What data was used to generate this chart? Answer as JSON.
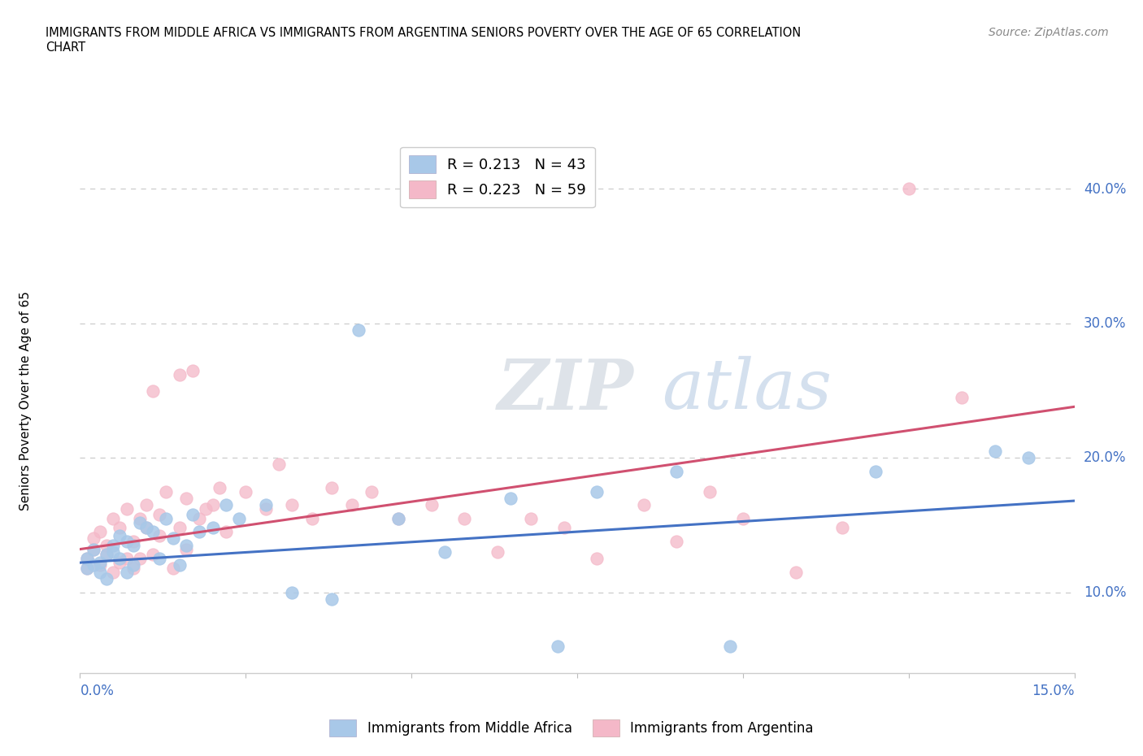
{
  "title_line1": "IMMIGRANTS FROM MIDDLE AFRICA VS IMMIGRANTS FROM ARGENTINA SENIORS POVERTY OVER THE AGE OF 65 CORRELATION",
  "title_line2": "CHART",
  "source": "Source: ZipAtlas.com",
  "ylabel": "Seniors Poverty Over the Age of 65",
  "yticks": [
    0.1,
    0.2,
    0.3,
    0.4
  ],
  "ytick_labels": [
    "10.0%",
    "20.0%",
    "30.0%",
    "40.0%"
  ],
  "xlim": [
    0.0,
    0.15
  ],
  "ylim": [
    0.04,
    0.445
  ],
  "color_blue": "#a8c8e8",
  "color_pink": "#f4b8c8",
  "color_line_blue": "#4472c4",
  "color_line_pink": "#d05070",
  "watermark_zip": "ZIP",
  "watermark_atlas": "atlas",
  "blue_scatter_x": [
    0.001,
    0.001,
    0.002,
    0.002,
    0.003,
    0.003,
    0.004,
    0.004,
    0.005,
    0.005,
    0.006,
    0.006,
    0.007,
    0.007,
    0.008,
    0.008,
    0.009,
    0.01,
    0.011,
    0.012,
    0.013,
    0.014,
    0.015,
    0.016,
    0.017,
    0.018,
    0.02,
    0.022,
    0.024,
    0.028,
    0.032,
    0.038,
    0.042,
    0.048,
    0.055,
    0.065,
    0.072,
    0.078,
    0.09,
    0.098,
    0.12,
    0.138,
    0.143
  ],
  "blue_scatter_y": [
    0.125,
    0.118,
    0.132,
    0.12,
    0.115,
    0.122,
    0.128,
    0.11,
    0.135,
    0.13,
    0.142,
    0.125,
    0.115,
    0.138,
    0.12,
    0.135,
    0.152,
    0.148,
    0.145,
    0.125,
    0.155,
    0.14,
    0.12,
    0.135,
    0.158,
    0.145,
    0.148,
    0.165,
    0.155,
    0.165,
    0.1,
    0.095,
    0.295,
    0.155,
    0.13,
    0.17,
    0.06,
    0.175,
    0.19,
    0.06,
    0.19,
    0.205,
    0.2
  ],
  "pink_scatter_x": [
    0.001,
    0.001,
    0.002,
    0.002,
    0.003,
    0.003,
    0.004,
    0.004,
    0.005,
    0.005,
    0.006,
    0.006,
    0.007,
    0.007,
    0.008,
    0.008,
    0.009,
    0.009,
    0.01,
    0.01,
    0.011,
    0.011,
    0.012,
    0.012,
    0.013,
    0.014,
    0.015,
    0.015,
    0.016,
    0.016,
    0.017,
    0.018,
    0.019,
    0.02,
    0.021,
    0.022,
    0.025,
    0.028,
    0.03,
    0.032,
    0.035,
    0.038,
    0.041,
    0.044,
    0.048,
    0.053,
    0.058,
    0.063,
    0.068,
    0.073,
    0.078,
    0.085,
    0.09,
    0.095,
    0.1,
    0.108,
    0.115,
    0.125,
    0.133
  ],
  "pink_scatter_y": [
    0.125,
    0.118,
    0.132,
    0.14,
    0.12,
    0.145,
    0.128,
    0.135,
    0.115,
    0.155,
    0.122,
    0.148,
    0.125,
    0.162,
    0.118,
    0.138,
    0.125,
    0.155,
    0.148,
    0.165,
    0.25,
    0.128,
    0.142,
    0.158,
    0.175,
    0.118,
    0.262,
    0.148,
    0.132,
    0.17,
    0.265,
    0.155,
    0.162,
    0.165,
    0.178,
    0.145,
    0.175,
    0.162,
    0.195,
    0.165,
    0.155,
    0.178,
    0.165,
    0.175,
    0.155,
    0.165,
    0.155,
    0.13,
    0.155,
    0.148,
    0.125,
    0.165,
    0.138,
    0.175,
    0.155,
    0.115,
    0.148,
    0.4,
    0.245
  ],
  "blue_trend_x0": 0.0,
  "blue_trend_y0": 0.122,
  "blue_trend_x1": 0.15,
  "blue_trend_y1": 0.168,
  "pink_trend_x0": 0.0,
  "pink_trend_y0": 0.132,
  "pink_trend_x1": 0.15,
  "pink_trend_y1": 0.238
}
